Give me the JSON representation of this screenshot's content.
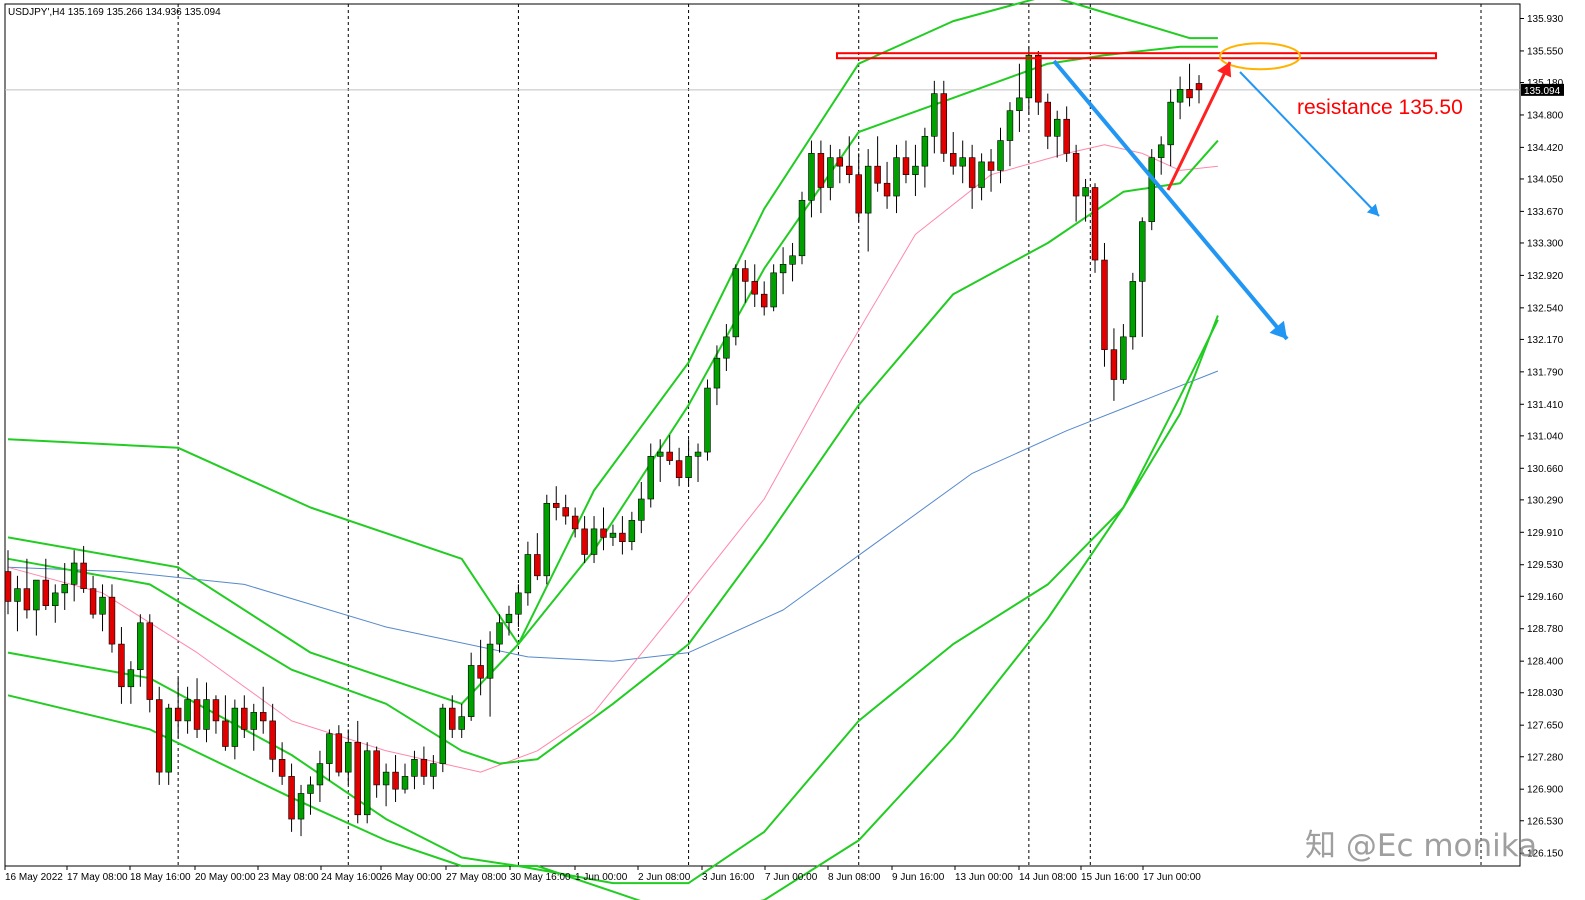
{
  "header": {
    "symbol_info": "USDJPY',H4  135.169 135.266 134.936 135.094"
  },
  "annotation": {
    "text": "resistance 135.50",
    "color": "#ff0000"
  },
  "watermark": {
    "text": "知 @Ec monika"
  },
  "colors": {
    "bull": "#00a000",
    "bear": "#e00000",
    "wick": "#000000",
    "bollinger": "#22cc22",
    "ma_fast": "#ff88aa",
    "ma_slow": "#5588cc",
    "resistance": "#ff0000",
    "arrow_up": "#ff2020",
    "arrow_down": "#2196f3",
    "circle": "#ffb300",
    "price_tag_bg": "#000000"
  },
  "chart_data": {
    "type": "candlestick",
    "symbol": "USDJPY",
    "timeframe": "H4",
    "ylim": [
      126.0,
      136.1
    ],
    "y_ticks": [
      "135.930",
      "135.550",
      "135.180",
      "134.800",
      "134.420",
      "134.050",
      "133.670",
      "133.300",
      "132.920",
      "132.540",
      "132.170",
      "131.790",
      "131.410",
      "131.040",
      "130.660",
      "130.290",
      "129.910",
      "129.530",
      "129.160",
      "128.780",
      "128.400",
      "128.030",
      "127.650",
      "127.280",
      "126.900",
      "126.530",
      "126.150"
    ],
    "current_price": "135.094",
    "x_labels": [
      "16 May 2022",
      "17 May 08:00",
      "18 May 16:00",
      "20 May 00:00",
      "23 May 08:00",
      "24 May 16:00",
      "26 May 00:00",
      "27 May 08:00",
      "30 May 16:00",
      "1 Jun 00:00",
      "2 Jun 08:00",
      "3 Jun 16:00",
      "7 Jun 00:00",
      "8 Jun 08:00",
      "9 Jun 16:00",
      "13 Jun 00:00",
      "14 Jun 08:00",
      "15 Jun 16:00",
      "17 Jun 00:00"
    ],
    "resistance_level": 135.5,
    "candles_ohlc": [
      [
        129.45,
        129.7,
        128.95,
        129.1
      ],
      [
        129.1,
        129.4,
        128.75,
        129.25
      ],
      [
        129.25,
        129.6,
        128.9,
        129.0
      ],
      [
        129.0,
        129.35,
        128.7,
        129.35
      ],
      [
        129.35,
        129.6,
        129.0,
        129.05
      ],
      [
        129.05,
        129.3,
        128.85,
        129.2
      ],
      [
        129.2,
        129.55,
        129.0,
        129.3
      ],
      [
        129.3,
        129.7,
        129.1,
        129.55
      ],
      [
        129.55,
        129.75,
        129.2,
        129.25
      ],
      [
        129.25,
        129.4,
        128.9,
        128.95
      ],
      [
        128.95,
        129.3,
        128.75,
        129.15
      ],
      [
        129.15,
        129.3,
        128.5,
        128.6
      ],
      [
        128.6,
        128.8,
        127.9,
        128.1
      ],
      [
        128.1,
        128.4,
        127.9,
        128.3
      ],
      [
        128.3,
        128.95,
        128.1,
        128.85
      ],
      [
        128.85,
        128.95,
        127.8,
        127.95
      ],
      [
        127.95,
        128.1,
        126.95,
        127.1
      ],
      [
        127.1,
        127.9,
        126.95,
        127.85
      ],
      [
        127.85,
        128.2,
        127.5,
        127.7
      ],
      [
        127.7,
        128.1,
        127.55,
        127.95
      ],
      [
        127.95,
        128.2,
        127.5,
        127.6
      ],
      [
        127.6,
        128.15,
        127.45,
        127.95
      ],
      [
        127.95,
        128.0,
        127.55,
        127.7
      ],
      [
        127.7,
        128.0,
        127.35,
        127.4
      ],
      [
        127.4,
        127.95,
        127.25,
        127.85
      ],
      [
        127.85,
        128.0,
        127.5,
        127.6
      ],
      [
        127.6,
        127.9,
        127.35,
        127.8
      ],
      [
        127.8,
        128.1,
        127.55,
        127.7
      ],
      [
        127.7,
        127.9,
        127.1,
        127.25
      ],
      [
        127.25,
        127.45,
        126.95,
        127.05
      ],
      [
        127.05,
        127.2,
        126.4,
        126.55
      ],
      [
        126.55,
        126.95,
        126.35,
        126.85
      ],
      [
        126.85,
        127.05,
        126.6,
        126.95
      ],
      [
        126.95,
        127.35,
        126.75,
        127.2
      ],
      [
        127.2,
        127.6,
        127.0,
        127.55
      ],
      [
        127.55,
        127.65,
        127.05,
        127.1
      ],
      [
        127.1,
        127.6,
        126.95,
        127.45
      ],
      [
        127.45,
        127.7,
        126.5,
        126.6
      ],
      [
        126.6,
        127.45,
        126.5,
        127.35
      ],
      [
        127.35,
        127.4,
        126.8,
        126.95
      ],
      [
        126.95,
        127.2,
        126.7,
        127.1
      ],
      [
        127.1,
        127.3,
        126.75,
        126.9
      ],
      [
        126.9,
        127.2,
        126.85,
        127.05
      ],
      [
        127.05,
        127.35,
        126.9,
        127.25
      ],
      [
        127.25,
        127.4,
        126.95,
        127.05
      ],
      [
        127.05,
        127.3,
        126.9,
        127.2
      ],
      [
        127.2,
        127.9,
        127.1,
        127.85
      ],
      [
        127.85,
        128.0,
        127.5,
        127.6
      ],
      [
        127.6,
        127.9,
        127.5,
        127.75
      ],
      [
        127.75,
        128.5,
        127.7,
        128.35
      ],
      [
        128.35,
        128.65,
        128.0,
        128.2
      ],
      [
        128.2,
        128.75,
        127.75,
        128.6
      ],
      [
        128.6,
        128.95,
        128.5,
        128.85
      ],
      [
        128.85,
        129.05,
        128.7,
        128.95
      ],
      [
        128.95,
        129.3,
        128.8,
        129.2
      ],
      [
        129.2,
        129.8,
        129.05,
        129.65
      ],
      [
        129.65,
        129.9,
        129.35,
        129.4
      ],
      [
        129.4,
        130.35,
        129.3,
        130.25
      ],
      [
        130.25,
        130.45,
        130.05,
        130.2
      ],
      [
        130.2,
        130.35,
        130.0,
        130.1
      ],
      [
        130.1,
        130.2,
        129.85,
        129.95
      ],
      [
        129.95,
        130.1,
        129.55,
        129.65
      ],
      [
        129.65,
        130.1,
        129.55,
        129.95
      ],
      [
        129.95,
        130.2,
        129.7,
        129.85
      ],
      [
        129.85,
        130.0,
        129.75,
        129.9
      ],
      [
        129.9,
        130.1,
        129.65,
        129.8
      ],
      [
        129.8,
        130.15,
        129.7,
        130.05
      ],
      [
        130.05,
        130.5,
        129.9,
        130.3
      ],
      [
        130.3,
        130.95,
        130.2,
        130.8
      ],
      [
        130.8,
        131.0,
        130.5,
        130.85
      ],
      [
        130.85,
        131.05,
        130.7,
        130.75
      ],
      [
        130.75,
        130.9,
        130.45,
        130.55
      ],
      [
        130.55,
        131.0,
        130.45,
        130.8
      ],
      [
        130.8,
        130.95,
        130.5,
        130.85
      ],
      [
        130.85,
        131.7,
        130.75,
        131.6
      ],
      [
        131.6,
        132.1,
        131.4,
        131.95
      ],
      [
        131.95,
        132.35,
        131.8,
        132.2
      ],
      [
        132.2,
        133.05,
        132.1,
        133.0
      ],
      [
        133.0,
        133.1,
        132.6,
        132.85
      ],
      [
        132.85,
        133.05,
        132.55,
        132.7
      ],
      [
        132.7,
        132.85,
        132.45,
        132.55
      ],
      [
        132.55,
        133.05,
        132.5,
        132.95
      ],
      [
        132.95,
        133.25,
        132.7,
        133.05
      ],
      [
        133.05,
        133.3,
        132.85,
        133.15
      ],
      [
        133.15,
        133.9,
        133.05,
        133.8
      ],
      [
        133.8,
        134.5,
        133.6,
        134.35
      ],
      [
        134.35,
        134.5,
        133.65,
        133.95
      ],
      [
        133.95,
        134.45,
        133.8,
        134.3
      ],
      [
        134.3,
        134.4,
        134.0,
        134.2
      ],
      [
        134.2,
        134.55,
        134.0,
        134.1
      ],
      [
        134.1,
        134.35,
        133.55,
        133.65
      ],
      [
        133.65,
        134.4,
        133.2,
        134.2
      ],
      [
        134.2,
        134.55,
        133.9,
        134.0
      ],
      [
        134.0,
        134.25,
        133.7,
        133.85
      ],
      [
        133.85,
        134.45,
        133.65,
        134.3
      ],
      [
        134.3,
        134.5,
        134.0,
        134.1
      ],
      [
        134.1,
        134.45,
        133.85,
        134.2
      ],
      [
        134.2,
        134.65,
        133.95,
        134.55
      ],
      [
        134.55,
        135.2,
        134.35,
        135.05
      ],
      [
        135.05,
        135.2,
        134.25,
        134.35
      ],
      [
        134.35,
        134.6,
        134.1,
        134.2
      ],
      [
        134.2,
        134.5,
        134.0,
        134.3
      ],
      [
        134.3,
        134.45,
        133.7,
        133.95
      ],
      [
        133.95,
        134.35,
        133.8,
        134.25
      ],
      [
        134.25,
        134.4,
        133.9,
        134.15
      ],
      [
        134.15,
        134.65,
        134.0,
        134.5
      ],
      [
        134.5,
        134.95,
        134.2,
        134.85
      ],
      [
        134.85,
        135.4,
        134.6,
        135.0
      ],
      [
        135.0,
        135.6,
        134.8,
        135.5
      ],
      [
        135.5,
        135.55,
        134.8,
        134.95
      ],
      [
        134.95,
        135.05,
        134.4,
        134.55
      ],
      [
        134.55,
        134.85,
        134.3,
        134.75
      ],
      [
        134.75,
        134.9,
        134.25,
        134.35
      ],
      [
        134.35,
        134.45,
        133.55,
        133.85
      ],
      [
        133.85,
        134.05,
        133.55,
        133.95
      ],
      [
        133.95,
        134.0,
        132.95,
        133.1
      ],
      [
        133.1,
        133.3,
        131.85,
        132.05
      ],
      [
        132.05,
        132.3,
        131.45,
        131.7
      ],
      [
        131.7,
        132.35,
        131.65,
        132.2
      ],
      [
        132.2,
        132.95,
        132.05,
        132.85
      ],
      [
        132.85,
        133.6,
        132.2,
        133.55
      ],
      [
        133.55,
        134.4,
        133.45,
        134.3
      ],
      [
        134.3,
        134.55,
        134.1,
        134.45
      ],
      [
        134.45,
        135.1,
        134.2,
        134.95
      ],
      [
        134.95,
        135.25,
        134.75,
        135.1
      ],
      [
        135.1,
        135.4,
        134.9,
        135.0
      ],
      [
        135.169,
        135.266,
        134.936,
        135.094
      ]
    ],
    "indicator_anchors": {
      "bb_upper_outer": [
        [
          0,
          131.0
        ],
        [
          18,
          130.9
        ],
        [
          32,
          130.2
        ],
        [
          48,
          129.6
        ],
        [
          54,
          128.6
        ],
        [
          62,
          130.4
        ],
        [
          72,
          131.9
        ],
        [
          80,
          133.7
        ],
        [
          90,
          135.4
        ],
        [
          100,
          135.9
        ],
        [
          110,
          136.2
        ],
        [
          116,
          136.0
        ],
        [
          125,
          135.7
        ],
        [
          128,
          135.7
        ]
      ],
      "bb_upper_inner": [
        [
          0,
          129.85
        ],
        [
          18,
          129.5
        ],
        [
          32,
          128.5
        ],
        [
          48,
          127.9
        ],
        [
          54,
          128.6
        ],
        [
          62,
          129.7
        ],
        [
          72,
          131.4
        ],
        [
          80,
          133.0
        ],
        [
          90,
          134.6
        ],
        [
          100,
          135.0
        ],
        [
          110,
          135.4
        ],
        [
          116,
          135.5
        ],
        [
          124,
          135.6
        ],
        [
          128,
          135.6
        ]
      ],
      "bb_middle": [
        [
          0,
          129.6
        ],
        [
          15,
          129.3
        ],
        [
          30,
          128.3
        ],
        [
          40,
          127.9
        ],
        [
          48,
          127.35
        ],
        [
          52,
          127.2
        ],
        [
          56,
          127.25
        ],
        [
          64,
          127.9
        ],
        [
          72,
          128.6
        ],
        [
          80,
          129.8
        ],
        [
          90,
          131.4
        ],
        [
          100,
          132.7
        ],
        [
          110,
          133.3
        ],
        [
          118,
          133.9
        ],
        [
          124,
          134.0
        ],
        [
          128,
          134.5
        ]
      ],
      "bb_lower_inner": [
        [
          0,
          128.5
        ],
        [
          15,
          128.2
        ],
        [
          30,
          127.3
        ],
        [
          40,
          126.55
        ],
        [
          48,
          126.1
        ],
        [
          54,
          126.0
        ],
        [
          64,
          125.8
        ],
        [
          72,
          125.8
        ],
        [
          80,
          126.4
        ],
        [
          90,
          127.7
        ],
        [
          100,
          128.6
        ],
        [
          110,
          129.3
        ],
        [
          118,
          130.2
        ],
        [
          124,
          131.5
        ],
        [
          128,
          132.4
        ]
      ],
      "bb_lower_outer": [
        [
          0,
          128.0
        ],
        [
          15,
          127.6
        ],
        [
          30,
          126.8
        ],
        [
          40,
          126.3
        ],
        [
          48,
          126.0
        ],
        [
          52,
          126.0
        ],
        [
          56,
          126.0
        ],
        [
          64,
          125.7
        ],
        [
          72,
          125.4
        ],
        [
          80,
          125.6
        ],
        [
          90,
          126.3
        ],
        [
          100,
          127.5
        ],
        [
          110,
          128.9
        ],
        [
          118,
          130.2
        ],
        [
          124,
          131.3
        ],
        [
          128,
          132.45
        ]
      ],
      "ma_fast": [
        [
          0,
          129.5
        ],
        [
          10,
          129.2
        ],
        [
          20,
          128.5
        ],
        [
          30,
          127.7
        ],
        [
          40,
          127.35
        ],
        [
          50,
          127.1
        ],
        [
          56,
          127.35
        ],
        [
          62,
          127.8
        ],
        [
          70,
          128.9
        ],
        [
          80,
          130.3
        ],
        [
          88,
          131.9
        ],
        [
          96,
          133.4
        ],
        [
          104,
          134.1
        ],
        [
          112,
          134.35
        ],
        [
          116,
          134.45
        ],
        [
          120,
          134.35
        ],
        [
          124,
          134.15
        ],
        [
          128,
          134.2
        ]
      ],
      "ma_slow": [
        [
          0,
          129.5
        ],
        [
          12,
          129.45
        ],
        [
          25,
          129.3
        ],
        [
          40,
          128.8
        ],
        [
          55,
          128.45
        ],
        [
          64,
          128.4
        ],
        [
          72,
          128.5
        ],
        [
          82,
          129.0
        ],
        [
          92,
          129.8
        ],
        [
          102,
          130.6
        ],
        [
          112,
          131.1
        ],
        [
          120,
          131.45
        ],
        [
          128,
          131.8
        ]
      ]
    }
  }
}
